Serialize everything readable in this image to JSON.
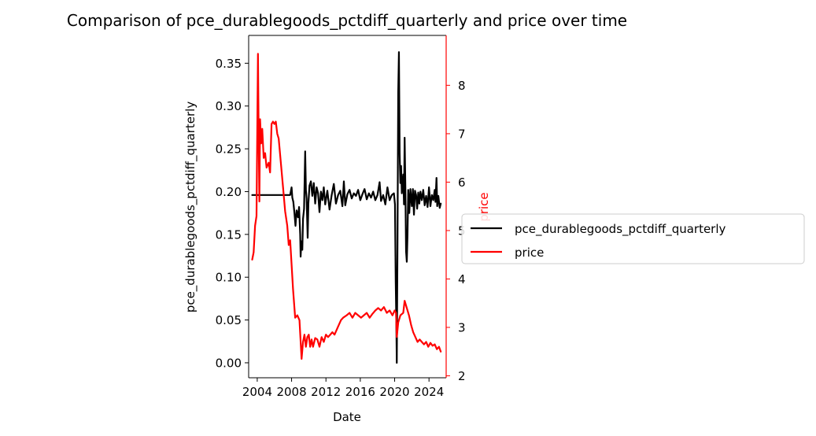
{
  "chart_data": {
    "type": "line",
    "title": "Comparison of pce_durablegoods_pctdiff_quarterly and price over time",
    "xlabel": "Date",
    "ylabel_left": "pce_durablegoods_pctdiff_quarterly",
    "ylabel_right": "price",
    "x_range": [
      "2003-01-01",
      "2025-12-31"
    ],
    "x_ticks": [
      {
        "date": "2004-01-01",
        "label": "2004"
      },
      {
        "date": "2008-01-01",
        "label": "2008"
      },
      {
        "date": "2012-01-01",
        "label": "2012"
      },
      {
        "date": "2016-01-01",
        "label": "2016"
      },
      {
        "date": "2020-01-01",
        "label": "2020"
      },
      {
        "date": "2024-01-01",
        "label": "2024"
      }
    ],
    "ylim_left": [
      -0.0175,
      0.3825
    ],
    "yticks_left": [
      {
        "value": 0.0,
        "label": "0.00"
      },
      {
        "value": 0.05,
        "label": "0.05"
      },
      {
        "value": 0.1,
        "label": "0.10"
      },
      {
        "value": 0.15,
        "label": "0.15"
      },
      {
        "value": 0.2,
        "label": "0.20"
      },
      {
        "value": 0.25,
        "label": "0.25"
      },
      {
        "value": 0.3,
        "label": "0.30"
      },
      {
        "value": 0.35,
        "label": "0.35"
      }
    ],
    "ylim_right": [
      1.96,
      9.03
    ],
    "yticks_right": [
      {
        "value": 2,
        "label": "2"
      },
      {
        "value": 3,
        "label": "3"
      },
      {
        "value": 4,
        "label": "4"
      },
      {
        "value": 5,
        "label": "5"
      },
      {
        "value": 6,
        "label": "6"
      },
      {
        "value": 7,
        "label": "7"
      },
      {
        "value": 8,
        "label": "8"
      }
    ],
    "grid": false,
    "legend_position": "right, outside plot",
    "series": [
      {
        "name": "pce_durablegoods_pctdiff_quarterly",
        "axis": "left",
        "color": "#000000",
        "points": [
          [
            "2003-06-01",
            0.196
          ],
          [
            "2005-01-01",
            0.196
          ],
          [
            "2006-06-01",
            0.196
          ],
          [
            "2007-09-01",
            0.196
          ],
          [
            "2007-11-01",
            0.196
          ],
          [
            "2008-01-01",
            0.205
          ],
          [
            "2008-02-01",
            0.193
          ],
          [
            "2008-03-15",
            0.188
          ],
          [
            "2008-05-01",
            0.175
          ],
          [
            "2008-06-15",
            0.16
          ],
          [
            "2008-08-01",
            0.178
          ],
          [
            "2008-10-01",
            0.17
          ],
          [
            "2008-11-15",
            0.182
          ],
          [
            "2009-01-01",
            0.15
          ],
          [
            "2009-01-20",
            0.124
          ],
          [
            "2009-02-20",
            0.142
          ],
          [
            "2009-04-01",
            0.132
          ],
          [
            "2009-05-01",
            0.168
          ],
          [
            "2009-06-15",
            0.18
          ],
          [
            "2009-08-01",
            0.247
          ],
          [
            "2009-09-01",
            0.202
          ],
          [
            "2009-10-01",
            0.192
          ],
          [
            "2009-11-15",
            0.146
          ],
          [
            "2009-12-15",
            0.186
          ],
          [
            "2010-02-01",
            0.207
          ],
          [
            "2010-04-01",
            0.212
          ],
          [
            "2010-06-01",
            0.195
          ],
          [
            "2010-08-01",
            0.21
          ],
          [
            "2010-10-01",
            0.186
          ],
          [
            "2010-12-01",
            0.205
          ],
          [
            "2011-02-01",
            0.198
          ],
          [
            "2011-04-01",
            0.176
          ],
          [
            "2011-06-01",
            0.2
          ],
          [
            "2011-08-01",
            0.19
          ],
          [
            "2011-10-01",
            0.205
          ],
          [
            "2011-12-01",
            0.185
          ],
          [
            "2012-03-01",
            0.201
          ],
          [
            "2012-06-01",
            0.179
          ],
          [
            "2012-09-01",
            0.196
          ],
          [
            "2012-12-01",
            0.209
          ],
          [
            "2013-03-01",
            0.186
          ],
          [
            "2013-06-01",
            0.196
          ],
          [
            "2013-09-01",
            0.201
          ],
          [
            "2013-12-01",
            0.183
          ],
          [
            "2014-02-01",
            0.212
          ],
          [
            "2014-04-01",
            0.184
          ],
          [
            "2014-07-01",
            0.197
          ],
          [
            "2014-10-01",
            0.202
          ],
          [
            "2015-01-01",
            0.192
          ],
          [
            "2015-04-01",
            0.198
          ],
          [
            "2015-07-01",
            0.195
          ],
          [
            "2015-10-01",
            0.202
          ],
          [
            "2016-01-01",
            0.19
          ],
          [
            "2016-04-01",
            0.197
          ],
          [
            "2016-07-01",
            0.203
          ],
          [
            "2016-10-01",
            0.191
          ],
          [
            "2017-01-01",
            0.198
          ],
          [
            "2017-04-01",
            0.193
          ],
          [
            "2017-07-01",
            0.2
          ],
          [
            "2017-10-01",
            0.19
          ],
          [
            "2018-01-01",
            0.196
          ],
          [
            "2018-04-01",
            0.211
          ],
          [
            "2018-06-01",
            0.189
          ],
          [
            "2018-09-01",
            0.196
          ],
          [
            "2018-12-01",
            0.185
          ],
          [
            "2019-03-01",
            0.205
          ],
          [
            "2019-06-01",
            0.19
          ],
          [
            "2019-09-01",
            0.196
          ],
          [
            "2019-12-01",
            0.198
          ],
          [
            "2020-01-15",
            0.185
          ],
          [
            "2020-02-15",
            0.095
          ],
          [
            "2020-03-10",
            0.052
          ],
          [
            "2020-04-01",
            0.0
          ],
          [
            "2020-05-01",
            0.14
          ],
          [
            "2020-06-01",
            0.315
          ],
          [
            "2020-07-01",
            0.363
          ],
          [
            "2020-08-01",
            0.245
          ],
          [
            "2020-09-01",
            0.21
          ],
          [
            "2020-10-01",
            0.23
          ],
          [
            "2020-11-01",
            0.198
          ],
          [
            "2021-01-01",
            0.22
          ],
          [
            "2021-02-01",
            0.185
          ],
          [
            "2021-03-01",
            0.263
          ],
          [
            "2021-04-01",
            0.205
          ],
          [
            "2021-05-01",
            0.13
          ],
          [
            "2021-06-01",
            0.118
          ],
          [
            "2021-07-01",
            0.15
          ],
          [
            "2021-08-01",
            0.202
          ],
          [
            "2021-09-15",
            0.175
          ],
          [
            "2021-11-01",
            0.203
          ],
          [
            "2022-01-01",
            0.183
          ],
          [
            "2022-02-15",
            0.203
          ],
          [
            "2022-04-01",
            0.173
          ],
          [
            "2022-05-15",
            0.201
          ],
          [
            "2022-07-01",
            0.196
          ],
          [
            "2022-08-15",
            0.18
          ],
          [
            "2022-10-01",
            0.199
          ],
          [
            "2022-11-15",
            0.186
          ],
          [
            "2023-01-01",
            0.2
          ],
          [
            "2023-03-01",
            0.19
          ],
          [
            "2023-05-01",
            0.202
          ],
          [
            "2023-07-01",
            0.184
          ],
          [
            "2023-09-01",
            0.195
          ],
          [
            "2023-11-01",
            0.182
          ],
          [
            "2024-01-01",
            0.205
          ],
          [
            "2024-03-01",
            0.183
          ],
          [
            "2024-05-01",
            0.196
          ],
          [
            "2024-07-01",
            0.19
          ],
          [
            "2024-09-01",
            0.202
          ],
          [
            "2024-10-01",
            0.188
          ],
          [
            "2024-11-15",
            0.216
          ],
          [
            "2024-12-15",
            0.183
          ],
          [
            "2025-02-01",
            0.195
          ],
          [
            "2025-04-01",
            0.181
          ],
          [
            "2025-05-15",
            0.186
          ]
        ]
      },
      {
        "name": "price",
        "axis": "right",
        "color": "#ff0000",
        "points": [
          [
            "2003-06-01",
            4.4
          ],
          [
            "2003-08-01",
            4.55
          ],
          [
            "2003-10-01",
            5.1
          ],
          [
            "2003-12-01",
            5.3
          ],
          [
            "2004-02-01",
            8.65
          ],
          [
            "2004-03-01",
            7.0
          ],
          [
            "2004-04-01",
            5.6
          ],
          [
            "2004-05-01",
            7.3
          ],
          [
            "2004-06-15",
            6.8
          ],
          [
            "2004-08-01",
            7.1
          ],
          [
            "2004-10-01",
            6.5
          ],
          [
            "2004-12-01",
            6.6
          ],
          [
            "2005-02-01",
            6.3
          ],
          [
            "2005-05-01",
            6.4
          ],
          [
            "2005-07-01",
            6.2
          ],
          [
            "2005-09-01",
            7.2
          ],
          [
            "2005-11-01",
            7.25
          ],
          [
            "2006-01-01",
            7.2
          ],
          [
            "2006-03-01",
            7.25
          ],
          [
            "2006-05-01",
            7.0
          ],
          [
            "2006-07-01",
            6.9
          ],
          [
            "2006-10-01",
            6.4
          ],
          [
            "2007-01-01",
            5.9
          ],
          [
            "2007-04-01",
            5.4
          ],
          [
            "2007-07-01",
            5.1
          ],
          [
            "2007-09-01",
            4.7
          ],
          [
            "2007-11-01",
            4.8
          ],
          [
            "2008-01-01",
            4.3
          ],
          [
            "2008-03-01",
            3.8
          ],
          [
            "2008-06-01",
            3.2
          ],
          [
            "2008-09-01",
            3.25
          ],
          [
            "2008-12-01",
            3.15
          ],
          [
            "2009-02-01",
            2.6
          ],
          [
            "2009-03-01",
            2.35
          ],
          [
            "2009-05-01",
            2.7
          ],
          [
            "2009-07-01",
            2.85
          ],
          [
            "2009-09-01",
            2.6
          ],
          [
            "2009-11-01",
            2.8
          ],
          [
            "2010-01-01",
            2.85
          ],
          [
            "2010-03-01",
            2.6
          ],
          [
            "2010-05-01",
            2.75
          ],
          [
            "2010-07-01",
            2.6
          ],
          [
            "2010-10-01",
            2.78
          ],
          [
            "2011-01-01",
            2.75
          ],
          [
            "2011-04-01",
            2.6
          ],
          [
            "2011-07-01",
            2.8
          ],
          [
            "2011-10-01",
            2.7
          ],
          [
            "2012-01-01",
            2.85
          ],
          [
            "2012-04-01",
            2.8
          ],
          [
            "2012-07-01",
            2.85
          ],
          [
            "2012-10-01",
            2.9
          ],
          [
            "2013-01-01",
            2.85
          ],
          [
            "2013-04-01",
            2.95
          ],
          [
            "2013-07-01",
            3.05
          ],
          [
            "2013-10-01",
            3.15
          ],
          [
            "2014-01-01",
            3.2
          ],
          [
            "2014-06-01",
            3.25
          ],
          [
            "2014-10-01",
            3.3
          ],
          [
            "2015-02-01",
            3.2
          ],
          [
            "2015-06-01",
            3.3
          ],
          [
            "2015-10-01",
            3.25
          ],
          [
            "2016-02-01",
            3.2
          ],
          [
            "2016-06-01",
            3.25
          ],
          [
            "2016-10-01",
            3.3
          ],
          [
            "2017-02-01",
            3.2
          ],
          [
            "2017-06-01",
            3.28
          ],
          [
            "2017-10-01",
            3.35
          ],
          [
            "2018-02-01",
            3.4
          ],
          [
            "2018-06-01",
            3.35
          ],
          [
            "2018-10-01",
            3.42
          ],
          [
            "2019-02-01",
            3.3
          ],
          [
            "2019-06-01",
            3.35
          ],
          [
            "2019-10-01",
            3.25
          ],
          [
            "2020-01-01",
            3.35
          ],
          [
            "2020-03-01",
            3.3
          ],
          [
            "2020-04-01",
            2.8
          ],
          [
            "2020-06-01",
            3.1
          ],
          [
            "2020-09-01",
            3.25
          ],
          [
            "2021-01-01",
            3.3
          ],
          [
            "2021-03-01",
            3.55
          ],
          [
            "2021-06-01",
            3.4
          ],
          [
            "2021-09-01",
            3.25
          ],
          [
            "2021-12-01",
            3.05
          ],
          [
            "2022-03-01",
            2.9
          ],
          [
            "2022-06-01",
            2.8
          ],
          [
            "2022-09-01",
            2.7
          ],
          [
            "2022-12-01",
            2.75
          ],
          [
            "2023-03-01",
            2.7
          ],
          [
            "2023-06-01",
            2.65
          ],
          [
            "2023-09-01",
            2.7
          ],
          [
            "2023-12-01",
            2.6
          ],
          [
            "2024-03-01",
            2.68
          ],
          [
            "2024-06-01",
            2.62
          ],
          [
            "2024-09-01",
            2.65
          ],
          [
            "2024-12-01",
            2.55
          ],
          [
            "2025-03-01",
            2.6
          ],
          [
            "2025-05-15",
            2.5
          ]
        ]
      }
    ]
  }
}
